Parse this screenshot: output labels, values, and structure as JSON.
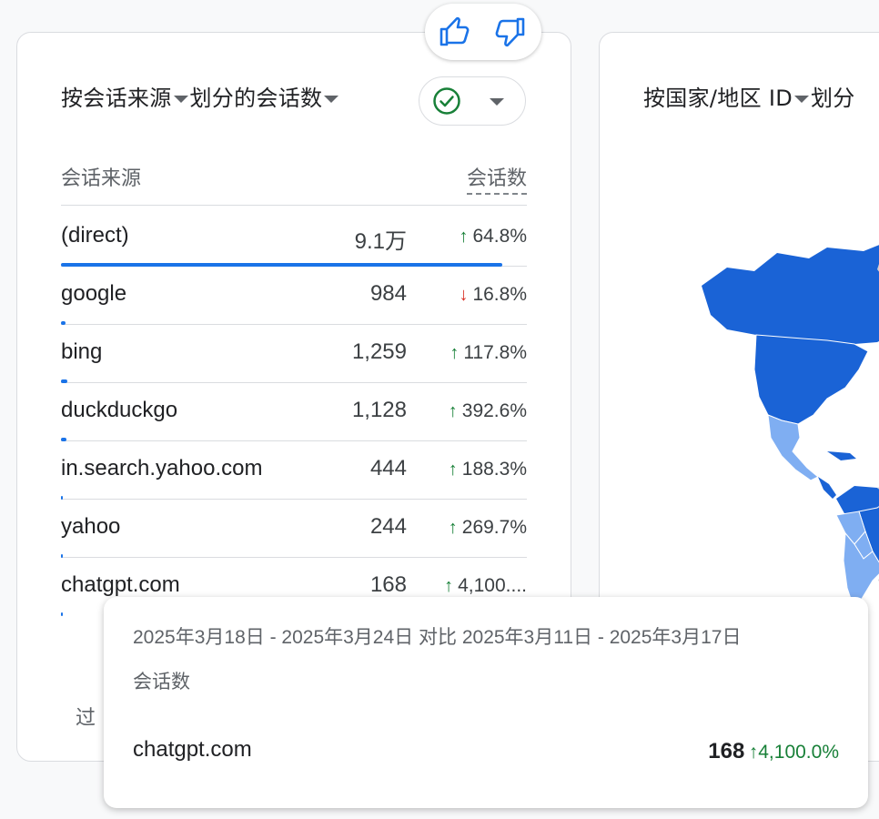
{
  "left_card": {
    "title_part1": "按会话来源",
    "title_part2": "划分的会话数",
    "col_source": "会话来源",
    "col_sessions": "会话数",
    "rows": [
      {
        "source": "(direct)",
        "value": "9.1万",
        "direction": "up",
        "change": "64.8%",
        "share": 1.0
      },
      {
        "source": "google",
        "value": "984",
        "direction": "down",
        "change": "16.8%",
        "share": 0.011
      },
      {
        "source": "bing",
        "value": "1,259",
        "direction": "up",
        "change": "117.8%",
        "share": 0.014
      },
      {
        "source": "duckduckgo",
        "value": "1,128",
        "direction": "up",
        "change": "392.6%",
        "share": 0.012
      },
      {
        "source": "in.search.yahoo.com",
        "value": "444",
        "direction": "up",
        "change": "188.3%",
        "share": 0.005
      },
      {
        "source": "yahoo",
        "value": "244",
        "direction": "up",
        "change": "269.7%",
        "share": 0.003
      },
      {
        "source": "chatgpt.com",
        "value": "168",
        "direction": "up",
        "change": "4,100....",
        "share": 0.002
      }
    ],
    "footer_peek": "过"
  },
  "right_card": {
    "title_part1": "按国家/地区 ID",
    "title_part2": "划分"
  },
  "tooltip": {
    "date_range": "2025年3月18日 - 2025年3月24日 对比 2025年3月11日 - 2025年3月17日",
    "metric": "会话数",
    "source": "chatgpt.com",
    "value": "168",
    "change": "4,100.0%"
  },
  "icons": {
    "feedback_up": "thumb-up-icon",
    "feedback_down": "thumb-down-icon",
    "filter": "check-circle-icon"
  },
  "colors": {
    "accent": "#1a73e8",
    "up": "#188038",
    "down": "#d93025"
  }
}
